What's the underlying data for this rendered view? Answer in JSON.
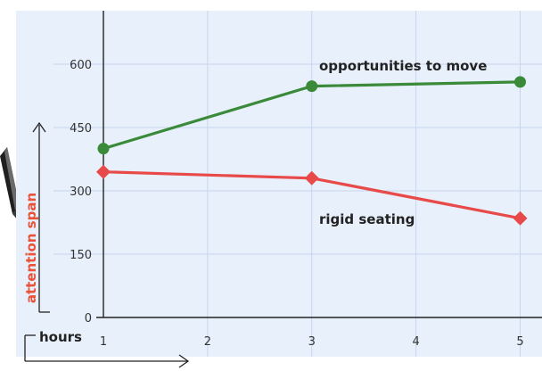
{
  "chart_data": {
    "type": "line",
    "x": [
      1,
      3,
      5
    ],
    "x_ticks": [
      1,
      2,
      3,
      4,
      5
    ],
    "y_ticks": [
      0,
      150,
      300,
      450,
      600
    ],
    "xlim": [
      1,
      5.15
    ],
    "ylim": [
      0,
      700
    ],
    "xlabel": "hours",
    "ylabel": "attention span",
    "grid": true,
    "series": [
      {
        "name": "opportunities to move",
        "values": [
          400,
          548,
          558
        ],
        "color": "#3a8a3a",
        "marker": "circle"
      },
      {
        "name": "rigid seating",
        "values": [
          345,
          330,
          235
        ],
        "color": "#e84a4a",
        "marker": "diamond"
      }
    ]
  },
  "colors": {
    "plot_background": "#e8f0fb",
    "grid": "#c6d6ee",
    "axis": "#222222",
    "ylabel": "#e8533a"
  }
}
